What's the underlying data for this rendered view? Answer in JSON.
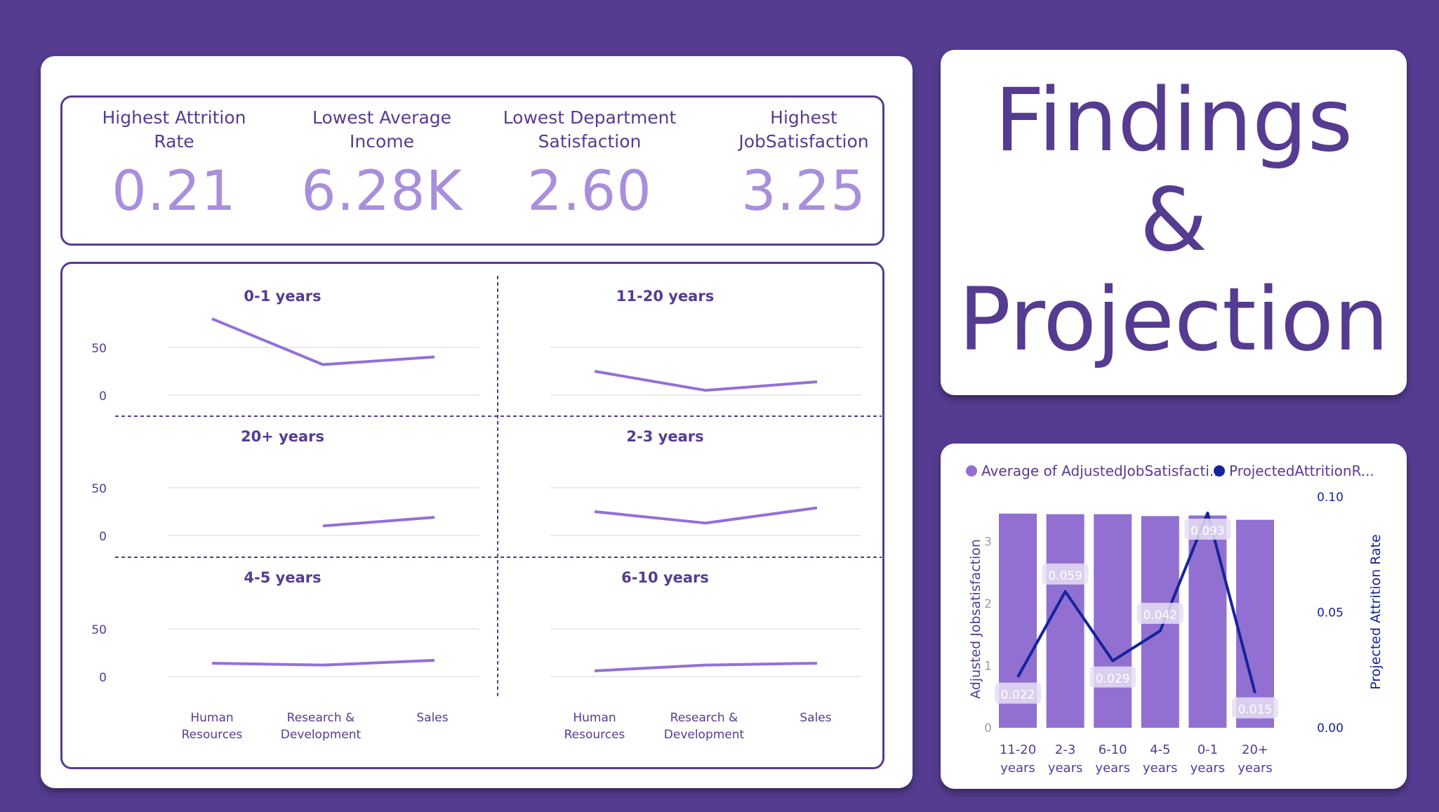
{
  "kpis": [
    {
      "label": "Highest Attrition\nRate",
      "value": "0.21"
    },
    {
      "label": "Lowest Average\nIncome",
      "value": "6.28K"
    },
    {
      "label": "Lowest Department\nSatisfaction",
      "value": "2.60"
    },
    {
      "label": "Highest\nJobSatisfaction",
      "value": "3.25"
    }
  ],
  "title": {
    "line1": "Findings",
    "line2": "&",
    "line3": "Projection"
  },
  "colors": {
    "background": "#553c91",
    "panel": "#ffffff",
    "accent_dark": "#553c91",
    "kpi_value": "#a98fdb",
    "line": "#9370d8",
    "bar": "#9170d2",
    "projection_line": "#16239a"
  },
  "chart_data": [
    {
      "type": "line",
      "layout": "small-multiples",
      "categories": [
        "Human\nResources",
        "Research &\nDevelopment",
        "Sales"
      ],
      "y_ticks": [
        "0",
        "50"
      ],
      "ylim": [
        0,
        100
      ],
      "panels": [
        {
          "title": "0-1 years",
          "values": [
            80,
            32,
            40
          ]
        },
        {
          "title": "11-20 years",
          "values": [
            25,
            5,
            14
          ]
        },
        {
          "title": "20+ years",
          "values": [
            null,
            10,
            19
          ]
        },
        {
          "title": "2-3 years",
          "values": [
            25,
            13,
            29
          ]
        },
        {
          "title": "4-5 years",
          "values": [
            14,
            12,
            17
          ]
        },
        {
          "title": "6-10 years",
          "values": [
            6,
            12,
            14
          ]
        }
      ]
    },
    {
      "type": "bar",
      "combo": "bar+line",
      "legend": [
        {
          "name": "Average of AdjustedJobSatisfacti...",
          "color": "#9170d2"
        },
        {
          "name": "ProjectedAttritionR...",
          "color": "#16239a"
        }
      ],
      "legend_position": "top",
      "categories": [
        "11-20\nyears",
        "2-3\nyears",
        "6-10\nyears",
        "4-5\nyears",
        "0-1\nyears",
        "20+\nyears"
      ],
      "bar_values": [
        3.45,
        3.44,
        3.44,
        3.41,
        3.42,
        3.35
      ],
      "line_values": [
        0.022,
        0.059,
        0.029,
        0.042,
        0.093,
        0.015
      ],
      "line_labels": [
        "0.022",
        "0.059",
        "0.029",
        "0.042",
        "0.093",
        "0.015"
      ],
      "ylabel_left": "Adjusted Jobsatisfaction",
      "ylabel_right": "Projected Attrition Rate",
      "ylim_left": [
        0,
        3.9
      ],
      "y_ticks_left": [
        "0",
        "1",
        "2",
        "3"
      ],
      "ylim_right": [
        0,
        0.1
      ],
      "y_ticks_right": [
        "0.00",
        "0.05",
        "0.10"
      ]
    }
  ]
}
